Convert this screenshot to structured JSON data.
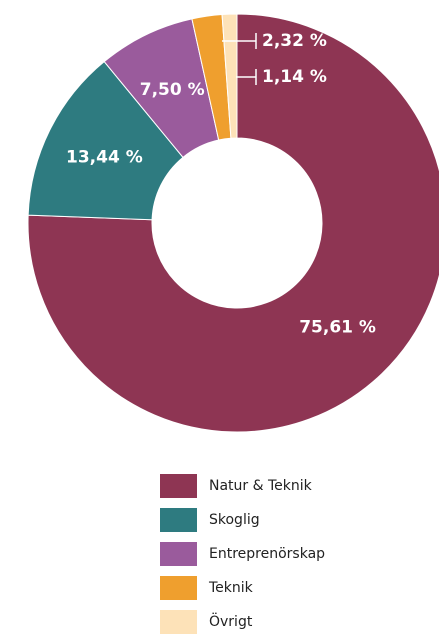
{
  "chart_data": {
    "type": "donut",
    "categories": [
      "Natur & Teknik",
      "Skoglig",
      "Entreprenörskap",
      "Teknik",
      "Övrigt"
    ],
    "values": [
      75.61,
      13.44,
      7.5,
      2.32,
      1.14
    ],
    "value_labels": [
      "75,61 %",
      "13,44 %",
      "7,50 %",
      "2,32 %",
      "1,14 %"
    ],
    "colors": [
      "#8e3553",
      "#2e7b80",
      "#9a5b9c",
      "#ef9f2e",
      "#fde2b8"
    ],
    "legend": "bottom"
  }
}
